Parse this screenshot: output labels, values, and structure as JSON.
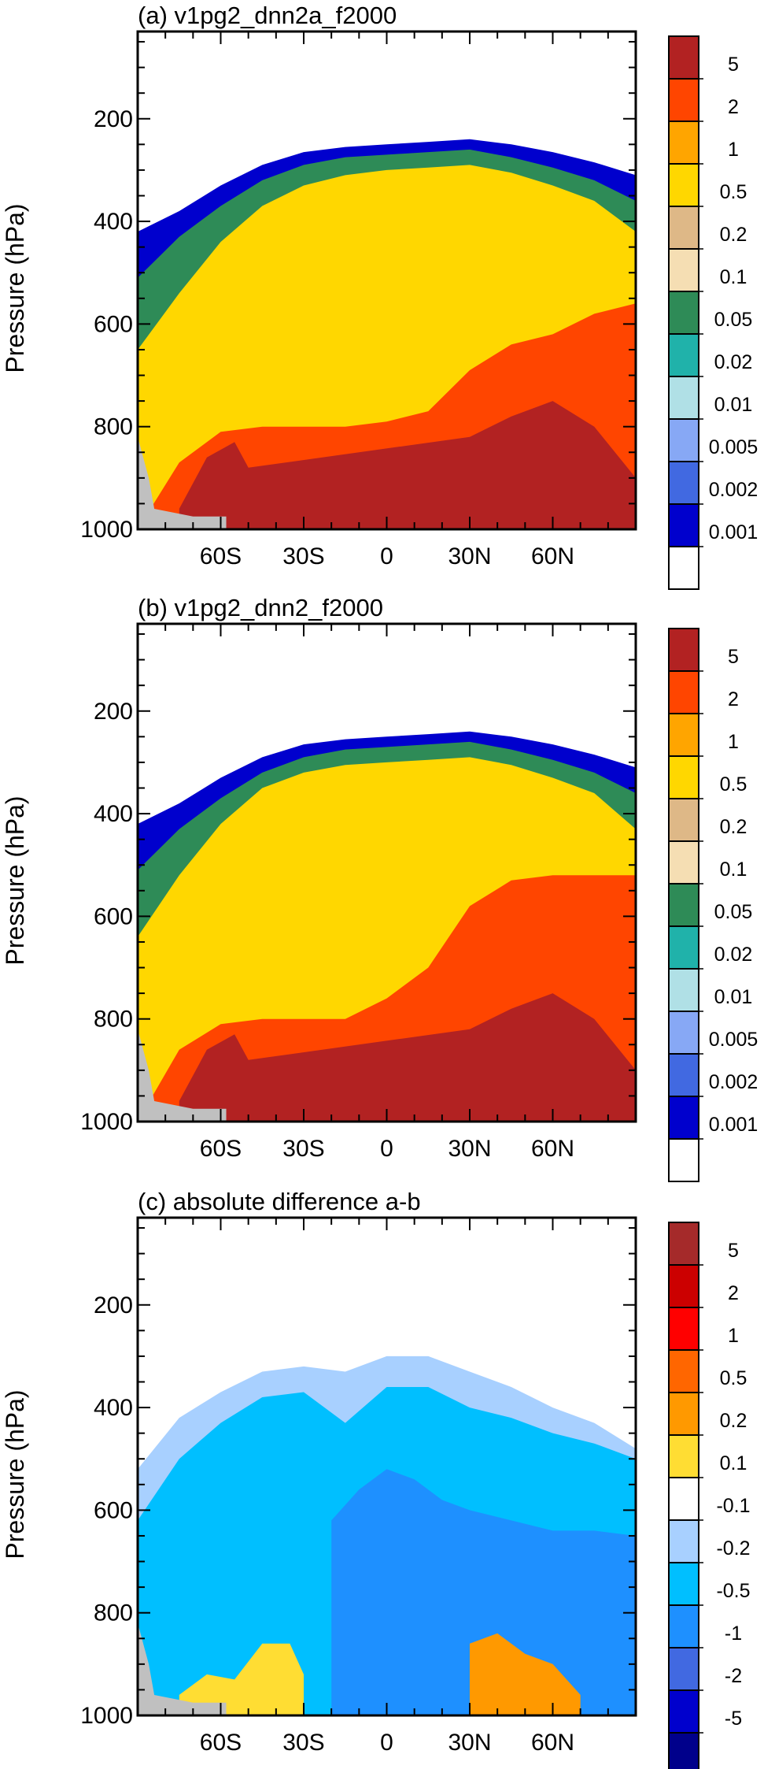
{
  "chart_data": [
    {
      "type": "heatmap",
      "title": "(a) v1pg2_dnn2a_f2000",
      "xlabel": "",
      "ylabel": "Pressure (hPa)",
      "x_ticks": [
        "60S",
        "30S",
        "0",
        "30N",
        "60N"
      ],
      "y_ticks": [
        "200",
        "400",
        "600",
        "800",
        "1000"
      ],
      "xlim": [
        -90,
        90
      ],
      "ylim": [
        1000,
        30
      ],
      "colorbar_labels": [
        "5",
        "2",
        "1",
        "0.5",
        "0.2",
        "0.1",
        "0.05",
        "0.02",
        "0.01",
        "0.005",
        "0.002",
        "0.001"
      ],
      "colors": [
        "#b22222",
        "#ff4500",
        "#ffa500",
        "#ffd700",
        "#deb887",
        "#f5deb3",
        "#2e8b57",
        "#20b2aa",
        "#b0e0e6",
        "#87a8f5",
        "#4169e1",
        "#0000cd",
        "#ffffff"
      ],
      "fields": [
        {
          "level": "0.001",
          "lat": [
            -90,
            -75,
            -60,
            -45,
            -30,
            -15,
            0,
            15,
            30,
            45,
            60,
            75,
            90
          ],
          "top_p": [
            420,
            380,
            330,
            290,
            265,
            255,
            250,
            245,
            240,
            250,
            265,
            285,
            310
          ]
        },
        {
          "level": "0.05",
          "lat": [
            -90,
            -75,
            -60,
            -45,
            -30,
            -15,
            0,
            15,
            30,
            45,
            60,
            75,
            90
          ],
          "top_p": [
            510,
            430,
            370,
            320,
            290,
            275,
            270,
            265,
            260,
            275,
            295,
            320,
            360
          ]
        },
        {
          "level": "0.5",
          "lat": [
            -90,
            -75,
            -60,
            -45,
            -30,
            -15,
            0,
            15,
            30,
            45,
            60,
            75,
            90
          ],
          "top_p": [
            650,
            540,
            440,
            370,
            330,
            310,
            300,
            295,
            290,
            305,
            330,
            360,
            420
          ]
        },
        {
          "level": "2",
          "lat": [
            -90,
            -75,
            -60,
            -45,
            -30,
            -15,
            0,
            15,
            30,
            45,
            60,
            75,
            90
          ],
          "top_p": [
            1000,
            870,
            810,
            800,
            800,
            800,
            790,
            770,
            690,
            640,
            620,
            580,
            560
          ]
        },
        {
          "level": "5",
          "lat": [
            -75,
            -65,
            -55,
            -50,
            30,
            45,
            60,
            75,
            90
          ],
          "top_p": [
            960,
            860,
            830,
            880,
            820,
            780,
            750,
            800,
            900
          ]
        }
      ]
    },
    {
      "type": "heatmap",
      "title": "(b) v1pg2_dnn2_f2000",
      "xlabel": "",
      "ylabel": "Pressure (hPa)",
      "x_ticks": [
        "60S",
        "30S",
        "0",
        "30N",
        "60N"
      ],
      "y_ticks": [
        "200",
        "400",
        "600",
        "800",
        "1000"
      ],
      "xlim": [
        -90,
        90
      ],
      "ylim": [
        1000,
        30
      ],
      "colorbar_labels": [
        "5",
        "2",
        "1",
        "0.5",
        "0.2",
        "0.1",
        "0.05",
        "0.02",
        "0.01",
        "0.005",
        "0.002",
        "0.001"
      ],
      "colors": [
        "#b22222",
        "#ff4500",
        "#ffa500",
        "#ffd700",
        "#deb887",
        "#f5deb3",
        "#2e8b57",
        "#20b2aa",
        "#b0e0e6",
        "#87a8f5",
        "#4169e1",
        "#0000cd",
        "#ffffff"
      ],
      "fields": [
        {
          "level": "0.001",
          "lat": [
            -90,
            -75,
            -60,
            -45,
            -30,
            -15,
            0,
            15,
            30,
            45,
            60,
            75,
            90
          ],
          "top_p": [
            420,
            380,
            330,
            290,
            265,
            255,
            250,
            245,
            240,
            250,
            265,
            285,
            310
          ]
        },
        {
          "level": "0.05",
          "lat": [
            -90,
            -75,
            -60,
            -45,
            -30,
            -15,
            0,
            15,
            30,
            45,
            60,
            75,
            90
          ],
          "top_p": [
            510,
            430,
            370,
            320,
            290,
            275,
            270,
            265,
            260,
            275,
            295,
            320,
            360
          ]
        },
        {
          "level": "0.5",
          "lat": [
            -90,
            -75,
            -60,
            -45,
            -30,
            -15,
            0,
            15,
            30,
            45,
            60,
            75,
            90
          ],
          "top_p": [
            640,
            520,
            420,
            350,
            320,
            305,
            300,
            295,
            290,
            305,
            330,
            360,
            430
          ]
        },
        {
          "level": "2",
          "lat": [
            -90,
            -75,
            -60,
            -45,
            -30,
            -15,
            0,
            15,
            30,
            45,
            60,
            75,
            90
          ],
          "top_p": [
            1000,
            860,
            810,
            800,
            800,
            800,
            760,
            700,
            580,
            530,
            520,
            520,
            520
          ]
        },
        {
          "level": "5",
          "lat": [
            -75,
            -65,
            -55,
            -50,
            30,
            45,
            60,
            75,
            90
          ],
          "top_p": [
            960,
            860,
            830,
            880,
            820,
            780,
            750,
            800,
            900
          ]
        }
      ]
    },
    {
      "type": "heatmap",
      "title": "(c) absolute difference a-b",
      "xlabel": "",
      "ylabel": "Pressure (hPa)",
      "x_ticks": [
        "60S",
        "30S",
        "0",
        "30N",
        "60N"
      ],
      "y_ticks": [
        "200",
        "400",
        "600",
        "800",
        "1000"
      ],
      "xlim": [
        -90,
        90
      ],
      "ylim": [
        1000,
        30
      ],
      "colorbar_labels": [
        "5",
        "2",
        "1",
        "0.5",
        "0.2",
        "0.1",
        "-0.1",
        "-0.2",
        "-0.5",
        "-1",
        "-2",
        "-5"
      ],
      "colors": [
        "#a52a2a",
        "#cc0000",
        "#ff0000",
        "#ff6600",
        "#ff9900",
        "#ffdd33",
        "#ffffff",
        "#a8d0ff",
        "#00bfff",
        "#1e90ff",
        "#4169e1",
        "#0000cd",
        "#00008b"
      ],
      "fields": [
        {
          "level": "-0.1",
          "lat": [
            -90,
            -75,
            -60,
            -45,
            -30,
            -15,
            0,
            15,
            30,
            45,
            60,
            75,
            90
          ],
          "top_p": [
            520,
            420,
            370,
            330,
            320,
            330,
            300,
            300,
            330,
            360,
            400,
            430,
            480
          ]
        },
        {
          "level": "-0.2",
          "lat": [
            -90,
            -75,
            -60,
            -45,
            -30,
            -15,
            0,
            15,
            30,
            45,
            60,
            75,
            90
          ],
          "top_p": [
            620,
            500,
            430,
            380,
            370,
            430,
            360,
            360,
            400,
            420,
            450,
            470,
            500
          ]
        },
        {
          "level": "-0.5",
          "lat": [
            -20,
            -10,
            0,
            10,
            20,
            30,
            45,
            60,
            75,
            90
          ],
          "top_p": [
            620,
            560,
            520,
            540,
            580,
            600,
            620,
            640,
            640,
            650
          ]
        },
        {
          "level": "0.1",
          "lat": [
            -75,
            -65,
            -55,
            -45,
            -35,
            -30
          ],
          "top_p": [
            960,
            920,
            930,
            860,
            860,
            920
          ]
        },
        {
          "level": "0.2",
          "lat": [
            30,
            40,
            50,
            60,
            70
          ],
          "top_p": [
            860,
            840,
            880,
            900,
            960
          ]
        }
      ]
    }
  ]
}
